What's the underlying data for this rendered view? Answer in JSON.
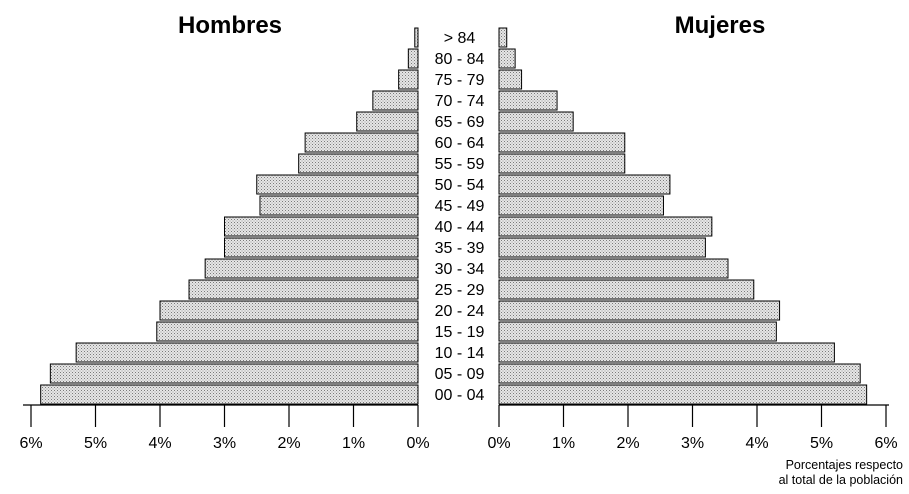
{
  "chart_data": {
    "type": "bar",
    "orientation": "horizontal",
    "title": "",
    "categories": [
      "00 - 04",
      "05 - 09",
      "10 - 14",
      "15 - 19",
      "20 - 24",
      "25 - 29",
      "30 - 34",
      "35 - 39",
      "40 - 44",
      "45 - 49",
      "50 - 54",
      "55 - 59",
      "60 - 64",
      "65 - 69",
      "70 - 74",
      "75 - 79",
      "80 - 84",
      "> 84"
    ],
    "series": [
      {
        "name": "Hombres",
        "side": "left",
        "values": [
          5.85,
          5.7,
          5.3,
          4.05,
          4.0,
          3.55,
          3.3,
          3.0,
          3.0,
          2.45,
          2.5,
          1.85,
          1.75,
          0.95,
          0.7,
          0.3,
          0.15,
          0.05
        ]
      },
      {
        "name": "Mujeres",
        "side": "right",
        "values": [
          5.7,
          5.6,
          5.2,
          4.3,
          4.35,
          3.95,
          3.55,
          3.2,
          3.3,
          2.55,
          2.65,
          1.95,
          1.95,
          1.15,
          0.9,
          0.35,
          0.25,
          0.12
        ]
      }
    ],
    "xlim": [
      0,
      6
    ],
    "ticks": [
      "0%",
      "1%",
      "2%",
      "3%",
      "4%",
      "5%",
      "6%"
    ],
    "left_ticks": [
      "6%",
      "5%",
      "4%",
      "3%",
      "2%",
      "1%",
      "0%"
    ],
    "right_ticks": [
      "0%",
      "1%",
      "2%",
      "3%",
      "4%",
      "5%",
      "6%"
    ],
    "bar_fill": "#d9d9d9",
    "bar_stroke": "#000000",
    "grid": false,
    "legend": "none"
  },
  "titles": {
    "left": "Hombres",
    "right": "Mujeres"
  },
  "note": {
    "line1": "Porcentajes respecto",
    "line2": "al total de la población"
  }
}
